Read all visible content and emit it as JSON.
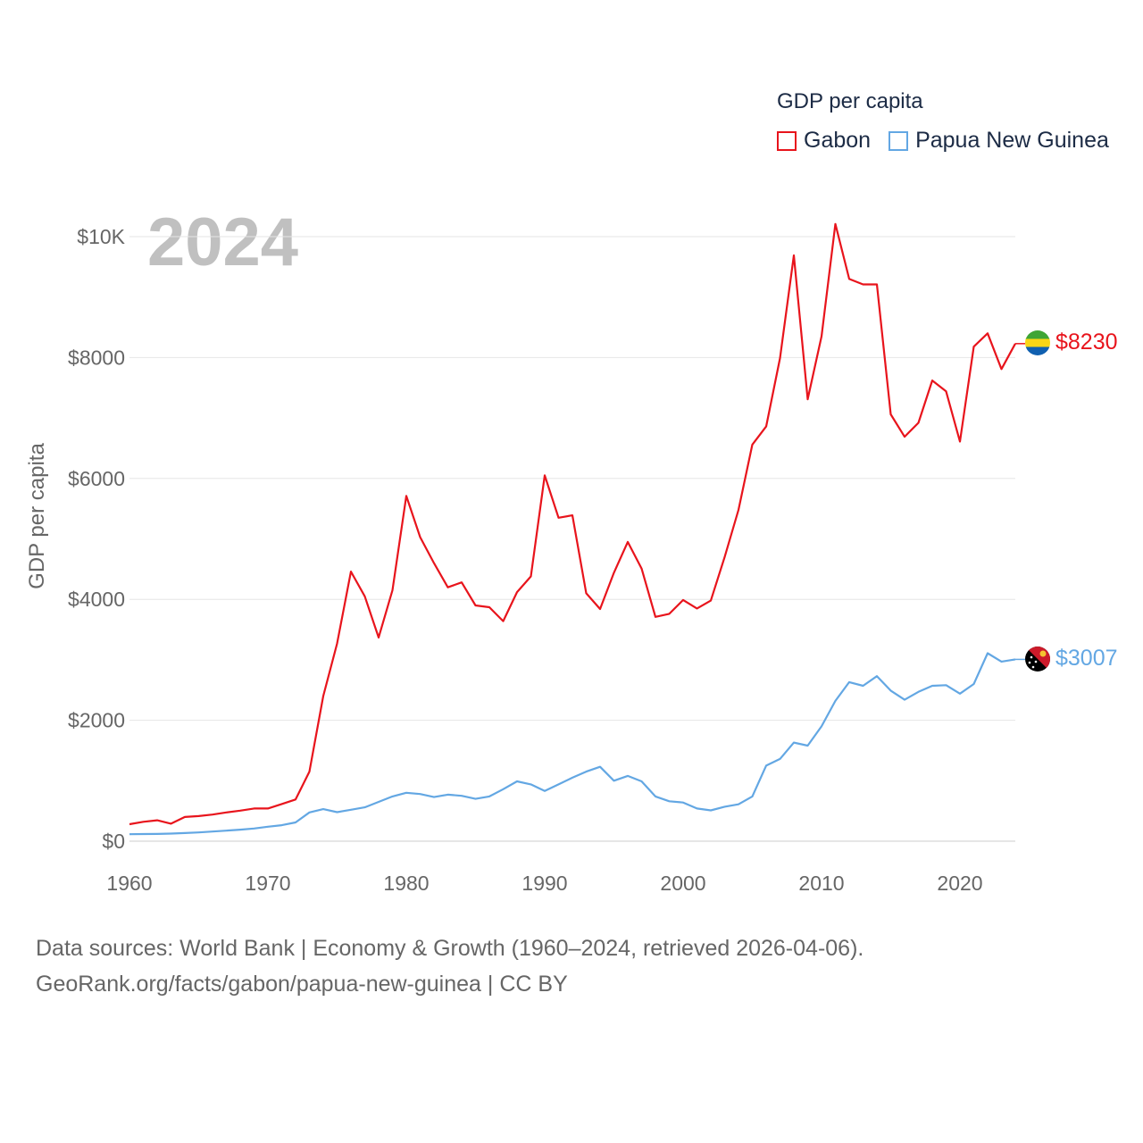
{
  "legend": {
    "title": "GDP per capita",
    "items": [
      {
        "name": "Gabon",
        "color": "#e8141c"
      },
      {
        "name": "Papua New Guinea",
        "color": "#63a7e3"
      }
    ]
  },
  "year_label": "2024",
  "footer": {
    "line1": "Data sources: World Bank | Economy & Growth (1960–2024, retrieved 2026-04-06).",
    "line2": "GeoRank.org/facts/gabon/papua-new-guinea | CC BY"
  },
  "chart_data": {
    "type": "line",
    "title": "GDP per capita",
    "xlabel": "",
    "ylabel": "GDP per capita",
    "xlim": [
      1960,
      2024
    ],
    "ylim": [
      0,
      10000
    ],
    "x_ticks": [
      1960,
      1970,
      1980,
      1990,
      2000,
      2010,
      2020
    ],
    "x_tick_labels": [
      "1960",
      "1970",
      "1980",
      "1990",
      "2000",
      "2010",
      "2020"
    ],
    "y_ticks": [
      0,
      2000,
      4000,
      6000,
      8000,
      10000
    ],
    "y_tick_labels": [
      "$0",
      "$2000",
      "$4000",
      "$6000",
      "$8000",
      "$10K"
    ],
    "grid": true,
    "legend_position": "top-right",
    "x": [
      1960,
      1961,
      1962,
      1963,
      1964,
      1965,
      1966,
      1967,
      1968,
      1969,
      1970,
      1971,
      1972,
      1973,
      1974,
      1975,
      1976,
      1977,
      1978,
      1979,
      1980,
      1981,
      1982,
      1983,
      1984,
      1985,
      1986,
      1987,
      1988,
      1989,
      1990,
      1991,
      1992,
      1993,
      1994,
      1995,
      1996,
      1997,
      1998,
      1999,
      2000,
      2001,
      2002,
      2003,
      2004,
      2005,
      2006,
      2007,
      2008,
      2009,
      2010,
      2011,
      2012,
      2013,
      2014,
      2015,
      2016,
      2017,
      2018,
      2019,
      2020,
      2021,
      2022,
      2023,
      2024
    ],
    "series": [
      {
        "name": "Gabon",
        "color": "#e8141c",
        "end_label": "$8230",
        "values": [
          280,
          320,
          345,
          290,
          400,
          415,
          440,
          475,
          505,
          540,
          540,
          615,
          690,
          1150,
          2400,
          3270,
          4460,
          4050,
          3370,
          4150,
          5710,
          5030,
          4600,
          4200,
          4280,
          3900,
          3870,
          3640,
          4120,
          4380,
          6050,
          5350,
          5390,
          4100,
          3840,
          4440,
          4950,
          4510,
          3710,
          3760,
          3990,
          3850,
          3980,
          4700,
          5480,
          6560,
          6860,
          7990,
          9690,
          7310,
          8350,
          10210,
          9300,
          9210,
          9210,
          7060,
          6690,
          6920,
          7620,
          7440,
          6610,
          8180,
          8400,
          7810,
          8230
        ]
      },
      {
        "name": "Papua New Guinea",
        "color": "#63a7e3",
        "end_label": "$3007",
        "values": [
          115,
          118,
          120,
          125,
          135,
          145,
          160,
          175,
          190,
          210,
          240,
          265,
          310,
          475,
          530,
          480,
          520,
          560,
          650,
          740,
          800,
          780,
          730,
          770,
          750,
          700,
          740,
          860,
          990,
          940,
          830,
          940,
          1050,
          1150,
          1230,
          1000,
          1080,
          990,
          740,
          660,
          640,
          540,
          510,
          570,
          610,
          740,
          1250,
          1360,
          1630,
          1580,
          1900,
          2320,
          2630,
          2570,
          2730,
          2490,
          2340,
          2470,
          2570,
          2580,
          2440,
          2600,
          3110,
          2970,
          3007
        ]
      }
    ]
  }
}
